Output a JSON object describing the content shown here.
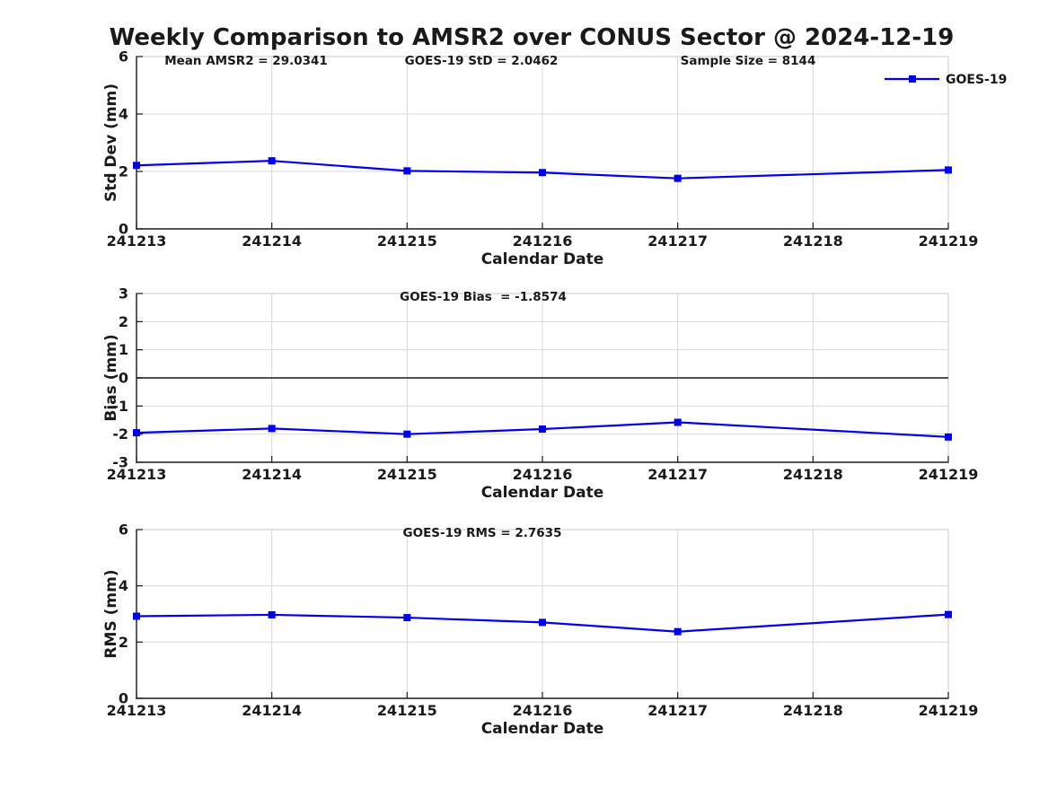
{
  "title": "Weekly Comparison to AMSR2 over CONUS Sector @ 2024-12-19",
  "legend": {
    "label": "GOES-19"
  },
  "colors": {
    "line": "#0000EE",
    "grid": "#d8d8d8",
    "box_edge": "#c9c9c9",
    "spine": "#1a1a1a",
    "zero_line": "#3a3a3a",
    "text": "#1a1a1a"
  },
  "chart_data": [
    {
      "type": "line",
      "panel": "std_dev",
      "xlabel": "Calendar Date",
      "ylabel": "Std Dev (mm)",
      "ylim": [
        0,
        6
      ],
      "yticks": [
        0,
        2,
        4,
        6
      ],
      "xticklabels": [
        "241213",
        "241214",
        "241215",
        "241216",
        "241217",
        "241218",
        "241219"
      ],
      "grid": true,
      "zero_line": false,
      "legend_position": "top-right",
      "annotations": [
        "Mean AMSR2 = 29.0341",
        "GOES-19 StD = 2.0462",
        "Sample Size = 8144"
      ],
      "series": [
        {
          "name": "GOES-19",
          "marker": "square",
          "x": [
            "241213",
            "241214",
            "241215",
            "241216",
            "241217",
            "241219"
          ],
          "y": [
            2.21,
            2.37,
            2.02,
            1.96,
            1.76,
            2.05
          ]
        }
      ]
    },
    {
      "type": "line",
      "panel": "bias",
      "xlabel": "Calendar Date",
      "ylabel": "Bias (mm)",
      "ylim": [
        -3,
        3
      ],
      "yticks": [
        3,
        2,
        1,
        0,
        -1,
        -2,
        -3
      ],
      "xticklabels": [
        "241213",
        "241214",
        "241215",
        "241216",
        "241217",
        "241218",
        "241219"
      ],
      "grid": true,
      "zero_line": true,
      "annotations": [
        "GOES-19 Bias  = -1.8574"
      ],
      "series": [
        {
          "name": "GOES-19",
          "marker": "square",
          "x": [
            "241213",
            "241214",
            "241215",
            "241216",
            "241217",
            "241219"
          ],
          "y": [
            -1.95,
            -1.8,
            -2.0,
            -1.82,
            -1.58,
            -2.1
          ]
        }
      ]
    },
    {
      "type": "line",
      "panel": "rms",
      "xlabel": "Calendar Date",
      "ylabel": "RMS (mm)",
      "ylim": [
        0,
        6
      ],
      "yticks": [
        0,
        2,
        4,
        6
      ],
      "xticklabels": [
        "241213",
        "241214",
        "241215",
        "241216",
        "241217",
        "241218",
        "241219"
      ],
      "grid": true,
      "zero_line": false,
      "annotations": [
        "GOES-19 RMS = 2.7635"
      ],
      "series": [
        {
          "name": "GOES-19",
          "marker": "square",
          "x": [
            "241213",
            "241214",
            "241215",
            "241216",
            "241217",
            "241219"
          ],
          "y": [
            2.92,
            2.97,
            2.87,
            2.7,
            2.37,
            2.98
          ]
        }
      ]
    }
  ]
}
